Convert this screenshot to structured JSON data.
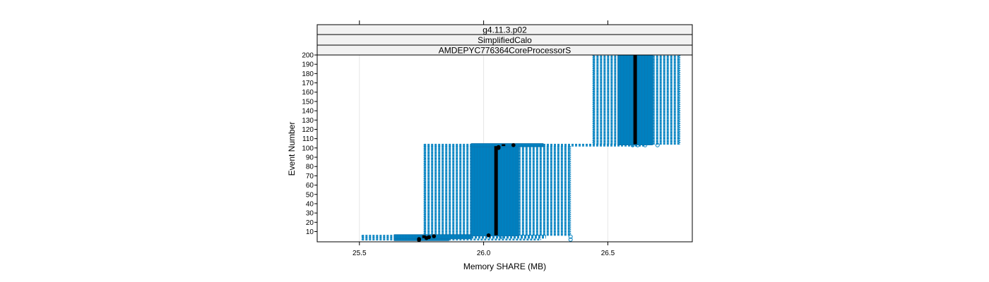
{
  "chart_data": {
    "type": "box",
    "orientation": "horizontal",
    "strips": [
      "g4.11.3.p02",
      "SimplifiedCalo",
      "AMDEPYC776364CoreProcessorS"
    ],
    "xlabel": "Memory SHARE (MB)",
    "ylabel": "Event Number",
    "xlim": [
      25.33,
      26.84
    ],
    "ylim": [
      -1,
      200
    ],
    "x_ticks": [
      25.5,
      26.0,
      26.5
    ],
    "x_tick_labels": [
      "25.5",
      "26.0",
      "26.5"
    ],
    "y_ticks": [
      10,
      20,
      30,
      40,
      50,
      60,
      70,
      80,
      90,
      100,
      110,
      120,
      130,
      140,
      150,
      160,
      170,
      180,
      190,
      200
    ],
    "y_tick_labels": [
      "10",
      "20",
      "30",
      "40",
      "50",
      "60",
      "70",
      "80",
      "90",
      "100",
      "110",
      "120",
      "130",
      "140",
      "150",
      "160",
      "170",
      "180",
      "190",
      "200"
    ],
    "grid": true,
    "box_color": "#0080C0",
    "median_color": "#000000",
    "groups": [
      {
        "y_from": 1,
        "y_to": 2,
        "whisker_low": 25.51,
        "q1": 25.64,
        "median": 25.74,
        "q3": 25.86,
        "whisker_high": 26.23,
        "outliers": [
          26.35
        ]
      },
      {
        "y_from": 3,
        "y_to": 6,
        "whisker_low": 25.51,
        "q1": 25.64,
        "median": 25.76,
        "q3": 25.95,
        "whisker_high": 26.25,
        "outliers": [
          26.07,
          26.35
        ]
      },
      {
        "y_from": 6,
        "y_to": 102,
        "whisker_low": 25.76,
        "q1": 25.95,
        "median": 26.05,
        "q3": 26.14,
        "whisker_high": 26.35,
        "outliers": []
      },
      {
        "y_from": 102,
        "y_to": 104,
        "whisker_low": 25.76,
        "q1": 25.95,
        "median": 26.08,
        "q3": 26.24,
        "whisker_high": 26.65,
        "outliers": [
          26.6,
          26.62,
          26.65,
          26.7
        ]
      },
      {
        "y_from": 104,
        "y_to": 200,
        "whisker_low": 26.44,
        "q1": 26.54,
        "median": 26.61,
        "q3": 26.68,
        "whisker_high": 26.79,
        "outliers": []
      }
    ],
    "median_points": [
      {
        "x": 25.74,
        "y": 1
      },
      {
        "x": 25.74,
        "y": 2
      },
      {
        "x": 25.77,
        "y": 3
      },
      {
        "x": 25.78,
        "y": 4
      },
      {
        "x": 25.8,
        "y": 5
      },
      {
        "x": 26.02,
        "y": 6
      },
      {
        "x": 26.06,
        "y": 100
      },
      {
        "x": 26.06,
        "y": 101
      },
      {
        "x": 26.12,
        "y": 103
      }
    ]
  }
}
